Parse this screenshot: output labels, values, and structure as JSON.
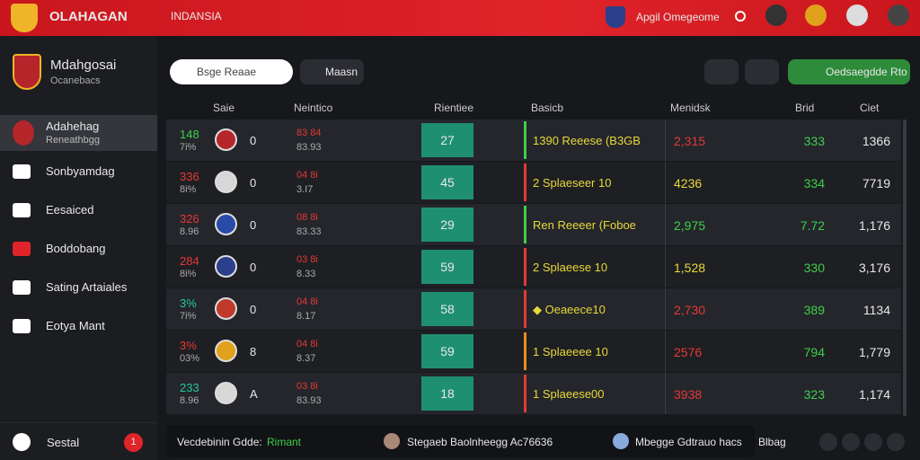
{
  "top_bar": {
    "brand": "OLAHAGAN",
    "region": "INDANSIA",
    "user": "Apgil Omegeome"
  },
  "sidebar": {
    "club_name": "Mdahgosai",
    "club_sub": "Ocanebacs",
    "nav": [
      {
        "label": "Adahehag",
        "sub": "Reneathbgg"
      },
      {
        "label": "Sonbyamdag"
      },
      {
        "label": "Eesaiced"
      },
      {
        "label": "Boddobang"
      },
      {
        "label": "Sating Artaiales"
      },
      {
        "label": "Eotya Mant"
      }
    ],
    "footer": {
      "label": "Sestal",
      "badge": "1"
    }
  },
  "toolbar": {
    "search_placeholder": "Bsge Reaae",
    "filter": "Maasn",
    "action": "Oedsaegdde Rto"
  },
  "table": {
    "columns": [
      "Saie",
      "Neintico",
      "Rientiee",
      "Basicb",
      "Menidsk",
      "Brid",
      "Ciet"
    ],
    "rows": [
      {
        "a": "148",
        "a_color": "#3ecf4a",
        "b": "7i%",
        "crest_color": "#b5262b",
        "letter": "0",
        "c": "83 84",
        "d": "83.93",
        "score": "27",
        "bar_color": "#3ecf4a",
        "desc": "1390 Reeese (B3GB",
        "value": "2,315",
        "value_color": "#e53935",
        "pct": "333",
        "total": "1366"
      },
      {
        "a": "336",
        "a_color": "#e53935",
        "b": "8i%",
        "crest_color": "#d7d7d7",
        "letter": "0",
        "c": "04 8i",
        "d": "3.I7",
        "score": "45",
        "bar_color": "#e53935",
        "desc": "2 Splaeseer 10",
        "value": "4236",
        "value_color": "#e8d83a",
        "pct": "334",
        "total": "7719"
      },
      {
        "a": "326",
        "a_color": "#e53935",
        "b": "8.96",
        "crest_color": "#2a4aa8",
        "letter": "0",
        "c": "08 8i",
        "d": "83.33",
        "score": "29",
        "bar_color": "#3ecf4a",
        "desc": "Ren Reeeer (Foboe",
        "value": "2,975",
        "value_color": "#3ecf4a",
        "pct": "7.72",
        "total": "1,176"
      },
      {
        "a": "284",
        "a_color": "#e53935",
        "b": "8i%",
        "crest_color": "#2b3f8c",
        "letter": "0",
        "c": "03 8i",
        "d": "8.33",
        "score": "59",
        "bar_color": "#e53935",
        "desc": "2 Splaeese 10",
        "value": "1,528",
        "value_color": "#e8d83a",
        "pct": "330",
        "total": "3,176"
      },
      {
        "a": "3%",
        "a_color": "#26c6a0",
        "b": "7i%",
        "crest_color": "#c0392b",
        "letter": "0",
        "c": "04 8i",
        "d": "8.17",
        "score": "58",
        "bar_color": "#e53935",
        "desc": "◆ Oeaeece10",
        "value": "2,730",
        "value_color": "#e53935",
        "pct": "389",
        "total": "1134"
      },
      {
        "a": "3%",
        "a_color": "#e53935",
        "b": "03%",
        "crest_color": "#e0a21a",
        "letter": "8",
        "c": "04 8i",
        "d": "8.37",
        "score": "59",
        "bar_color": "#f08a24",
        "desc": "1 Splaeeee 10",
        "value": "2576",
        "value_color": "#e53935",
        "pct": "794",
        "total": "1,779"
      },
      {
        "a": "233",
        "a_color": "#26c6a0",
        "b": "8.96",
        "crest_color": "#d7d7d7",
        "letter": "A",
        "c": "03 8i",
        "d": "83.93",
        "score": "18",
        "bar_color": "#e53935",
        "desc": "1 Splaeese00",
        "value": "3938",
        "value_color": "#e53935",
        "pct": "323",
        "total": "1,174"
      }
    ]
  },
  "bottom_bar": {
    "label": "Vecdebinin Gdde:",
    "status": "Rimant",
    "item1": "Stegaeb Baolnheegg Ac76636",
    "item2": "Mbegge Gdtrauo hacs",
    "item3": "Blbag"
  }
}
